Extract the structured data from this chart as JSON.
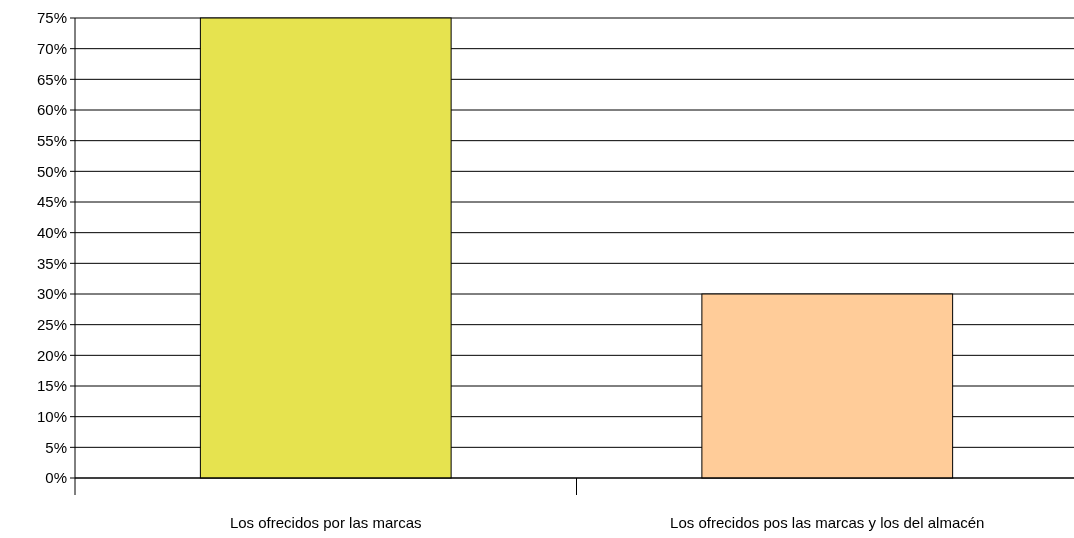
{
  "chart_data": {
    "type": "bar",
    "categories": [
      "Los ofrecidos por las marcas",
      "Los ofrecidos pos las marcas y los del almacén"
    ],
    "values": [
      75,
      30
    ],
    "colors": [
      "#e6e34f",
      "#ffcc99"
    ],
    "ylim": [
      0,
      75
    ],
    "yticks": [
      {
        "value": 0,
        "label": "0%"
      },
      {
        "value": 5,
        "label": "5%"
      },
      {
        "value": 10,
        "label": "10%"
      },
      {
        "value": 15,
        "label": "15%"
      },
      {
        "value": 20,
        "label": "20%"
      },
      {
        "value": 25,
        "label": "25%"
      },
      {
        "value": 30,
        "label": "30%"
      },
      {
        "value": 35,
        "label": "35%"
      },
      {
        "value": 40,
        "label": "40%"
      },
      {
        "value": 45,
        "label": "45%"
      },
      {
        "value": 50,
        "label": "50%"
      },
      {
        "value": 55,
        "label": "55%"
      },
      {
        "value": 60,
        "label": "60%"
      },
      {
        "value": 65,
        "label": "65%"
      },
      {
        "value": 70,
        "label": "70%"
      },
      {
        "value": 75,
        "label": "75%"
      }
    ],
    "grid": "y"
  }
}
